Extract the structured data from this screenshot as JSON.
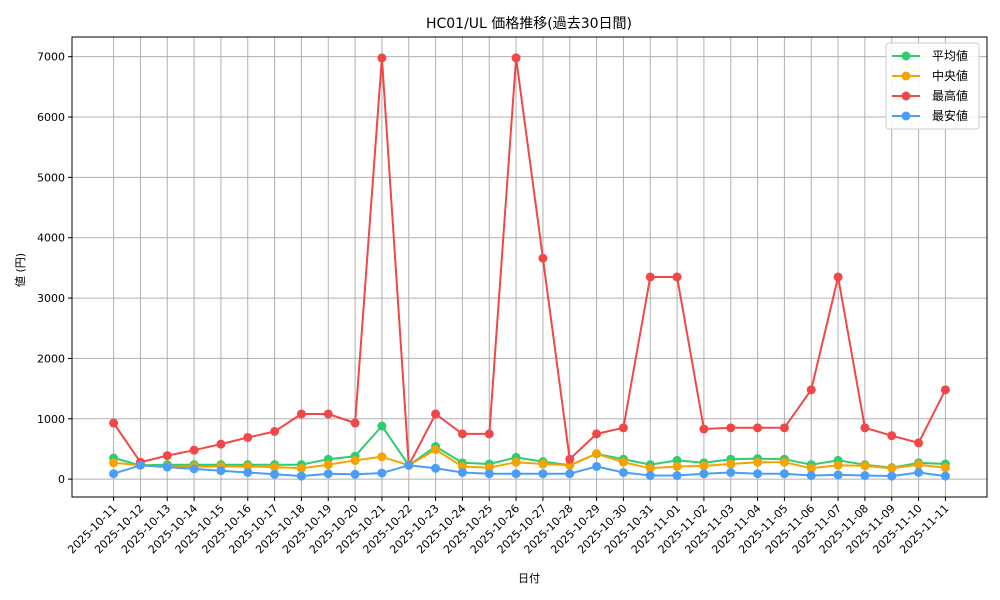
{
  "chart_data": {
    "type": "line",
    "title": "HC01/UL 価格推移(過去30日間)",
    "xlabel": "日付",
    "ylabel": "値 (円)",
    "ylim": [
      -296,
      7326
    ],
    "yticks": [
      0,
      1000,
      2000,
      3000,
      4000,
      5000,
      6000,
      7000
    ],
    "grid": true,
    "legend_position": "upper right",
    "categories": [
      "2025-10-11",
      "2025-10-12",
      "2025-10-13",
      "2025-10-14",
      "2025-10-15",
      "2025-10-16",
      "2025-10-17",
      "2025-10-18",
      "2025-10-19",
      "2025-10-20",
      "2025-10-21",
      "2025-10-22",
      "2025-10-23",
      "2025-10-24",
      "2025-10-25",
      "2025-10-26",
      "2025-10-27",
      "2025-10-28",
      "2025-10-29",
      "2025-10-30",
      "2025-10-31",
      "2025-11-01",
      "2025-11-02",
      "2025-11-03",
      "2025-11-04",
      "2025-11-05",
      "2025-11-06",
      "2025-11-07",
      "2025-11-08",
      "2025-11-09",
      "2025-11-10",
      "2025-11-11"
    ],
    "series": [
      {
        "name": "平均値",
        "color": "#2ecc71",
        "values": [
          350,
          230,
          240,
          240,
          240,
          240,
          240,
          240,
          330,
          380,
          880,
          230,
          540,
          270,
          250,
          360,
          290,
          230,
          420,
          330,
          240,
          310,
          270,
          330,
          340,
          330,
          240,
          310,
          240,
          190,
          270,
          250
        ]
      },
      {
        "name": "中央値",
        "color": "#f5a300",
        "values": [
          270,
          230,
          210,
          210,
          210,
          210,
          200,
          180,
          240,
          310,
          370,
          230,
          490,
          210,
          190,
          280,
          250,
          230,
          420,
          280,
          180,
          210,
          220,
          250,
          280,
          280,
          180,
          230,
          220,
          180,
          240,
          190
        ]
      },
      {
        "name": "最高値",
        "color": "#f04848",
        "values": [
          930,
          280,
          390,
          480,
          580,
          690,
          790,
          1080,
          1080,
          930,
          6980,
          230,
          1080,
          750,
          750,
          6980,
          3660,
          330,
          750,
          850,
          3350,
          3350,
          830,
          850,
          850,
          850,
          1480,
          3350,
          850,
          720,
          600,
          1480
        ]
      },
      {
        "name": "最安値",
        "color": "#4a9ef5",
        "values": [
          90,
          230,
          200,
          170,
          140,
          110,
          80,
          50,
          90,
          80,
          100,
          230,
          180,
          110,
          90,
          90,
          90,
          90,
          210,
          110,
          60,
          60,
          90,
          110,
          90,
          90,
          60,
          70,
          60,
          50,
          110,
          50
        ]
      }
    ]
  }
}
